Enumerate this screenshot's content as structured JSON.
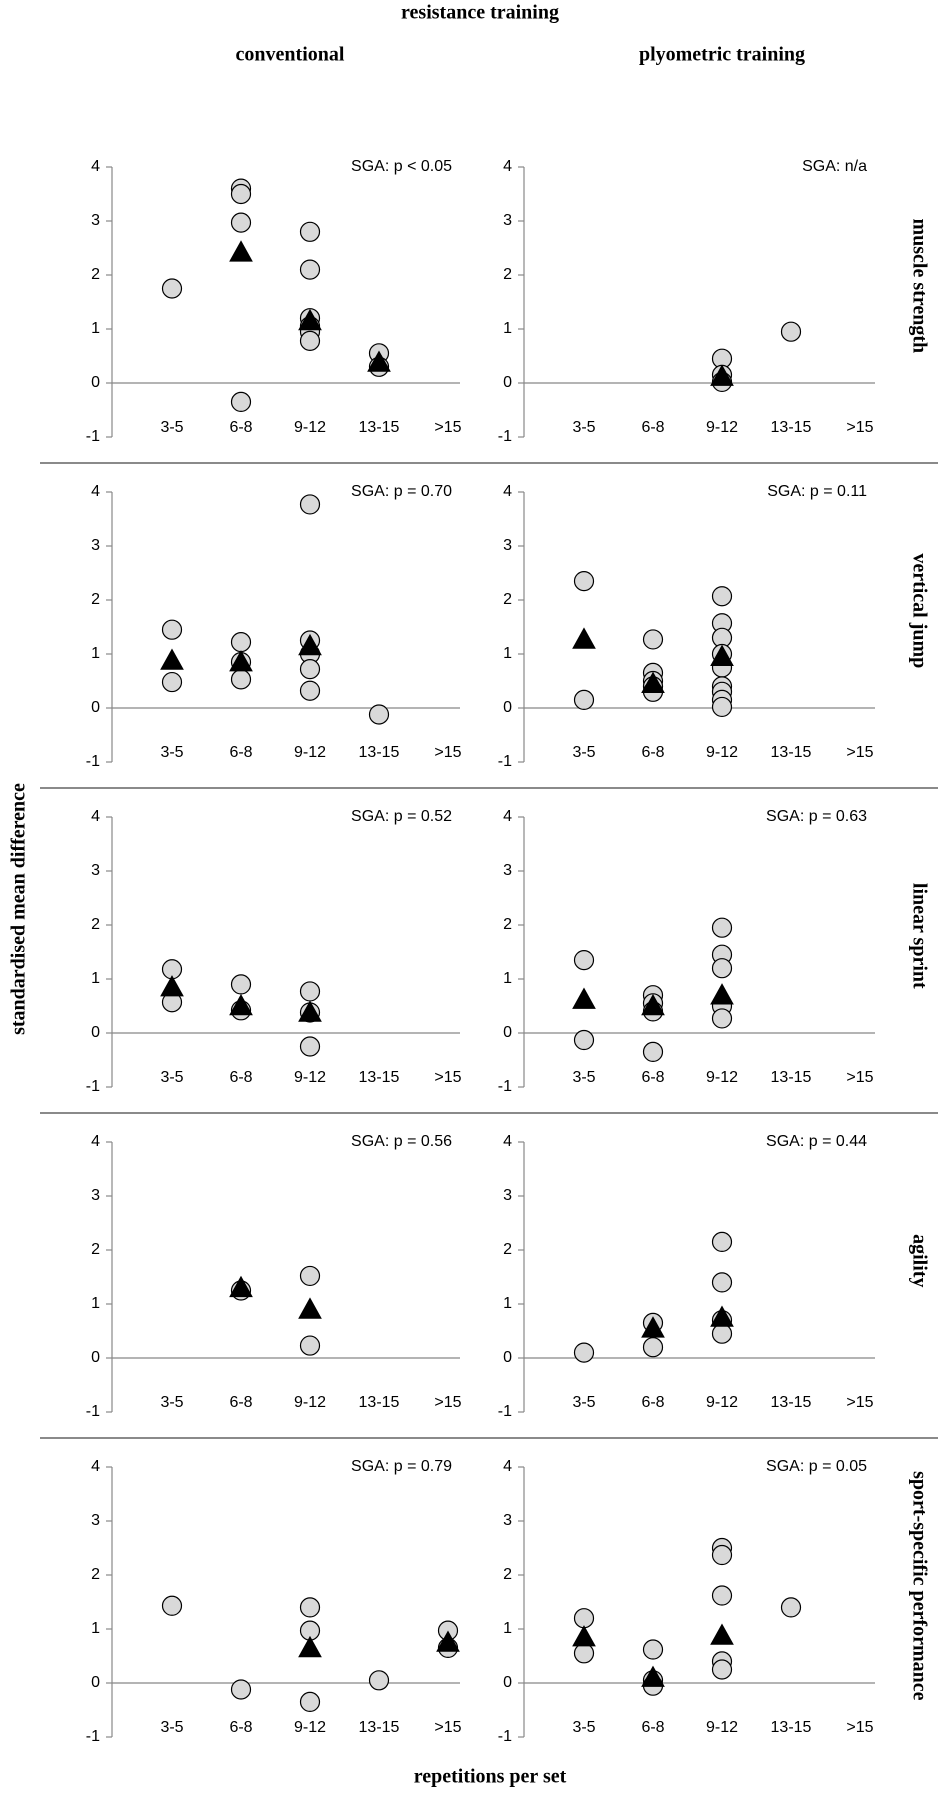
{
  "title": "resistance training",
  "column_titles": [
    "conventional",
    "plyometric training"
  ],
  "row_titles": [
    "muscle strength",
    "vertical jump",
    "linear sprint",
    "agility",
    "sport-specific performance"
  ],
  "ylabel": "standardised mean difference",
  "xlabel": "repetitions per set",
  "chart_data": [
    {
      "type": "scatter",
      "annotation": "SGA: p < 0.05",
      "categories": [
        "3-5",
        "6-8",
        "9-12",
        "13-15",
        ">15"
      ],
      "ylim": [
        -1,
        4
      ],
      "yticks": [
        -1,
        0,
        1,
        2,
        3,
        4
      ],
      "series": [
        {
          "marker": "circle",
          "color": "#d9d9d9",
          "x": [
            "3-5",
            "6-8",
            "6-8",
            "6-8",
            "6-8",
            "9-12",
            "9-12",
            "9-12",
            "9-12",
            "9-12",
            "9-12",
            "13-15",
            "13-15"
          ],
          "values": [
            1.75,
            3.6,
            3.5,
            2.97,
            -0.35,
            2.8,
            2.1,
            1.2,
            1.05,
            0.95,
            0.78,
            0.55,
            0.3
          ]
        },
        {
          "marker": "triangle",
          "color": "#000000",
          "x": [
            "6-8",
            "9-12",
            "13-15"
          ],
          "values": [
            2.42,
            1.15,
            0.38
          ]
        }
      ]
    },
    {
      "type": "scatter",
      "annotation": "SGA: n/a",
      "categories": [
        "3-5",
        "6-8",
        "9-12",
        "13-15",
        ">15"
      ],
      "ylim": [
        -1,
        4
      ],
      "yticks": [
        -1,
        0,
        1,
        2,
        3,
        4
      ],
      "series": [
        {
          "marker": "circle",
          "color": "#d9d9d9",
          "x": [
            "9-12",
            "9-12",
            "9-12",
            "13-15"
          ],
          "values": [
            0.45,
            0.15,
            0.02,
            0.95
          ]
        },
        {
          "marker": "triangle",
          "color": "#000000",
          "x": [
            "9-12"
          ],
          "values": [
            0.12
          ]
        }
      ]
    },
    {
      "type": "scatter",
      "annotation": "SGA: p = 0.70",
      "categories": [
        "3-5",
        "6-8",
        "9-12",
        "13-15",
        ">15"
      ],
      "ylim": [
        -1,
        4
      ],
      "yticks": [
        -1,
        0,
        1,
        2,
        3,
        4
      ],
      "series": [
        {
          "marker": "circle",
          "color": "#d9d9d9",
          "x": [
            "3-5",
            "3-5",
            "6-8",
            "6-8",
            "6-8",
            "9-12",
            "9-12",
            "9-12",
            "9-12",
            "9-12",
            "13-15"
          ],
          "values": [
            1.45,
            0.48,
            1.22,
            0.85,
            0.53,
            3.77,
            1.25,
            1.0,
            0.72,
            0.32,
            -0.12
          ]
        },
        {
          "marker": "triangle",
          "color": "#000000",
          "x": [
            "3-5",
            "6-8",
            "9-12"
          ],
          "values": [
            0.88,
            0.85,
            1.15
          ]
        }
      ]
    },
    {
      "type": "scatter",
      "annotation": "SGA: p = 0.11",
      "categories": [
        "3-5",
        "6-8",
        "9-12",
        "13-15",
        ">15"
      ],
      "ylim": [
        -1,
        4
      ],
      "yticks": [
        -1,
        0,
        1,
        2,
        3,
        4
      ],
      "series": [
        {
          "marker": "circle",
          "color": "#d9d9d9",
          "x": [
            "3-5",
            "3-5",
            "6-8",
            "6-8",
            "6-8",
            "6-8",
            "6-8",
            "9-12",
            "9-12",
            "9-12",
            "9-12",
            "9-12",
            "9-12",
            "9-12",
            "9-12",
            "9-12"
          ],
          "values": [
            2.35,
            0.15,
            1.27,
            0.65,
            0.5,
            0.4,
            0.3,
            2.07,
            1.57,
            1.3,
            1.0,
            0.75,
            0.4,
            0.3,
            0.15,
            0.02
          ]
        },
        {
          "marker": "triangle",
          "color": "#000000",
          "x": [
            "3-5",
            "6-8",
            "9-12"
          ],
          "values": [
            1.27,
            0.45,
            0.95
          ]
        }
      ]
    },
    {
      "type": "scatter",
      "annotation": "SGA: p = 0.52",
      "categories": [
        "3-5",
        "6-8",
        "9-12",
        "13-15",
        ">15"
      ],
      "ylim": [
        -1,
        4
      ],
      "yticks": [
        -1,
        0,
        1,
        2,
        3,
        4
      ],
      "series": [
        {
          "marker": "circle",
          "color": "#d9d9d9",
          "x": [
            "3-5",
            "3-5",
            "6-8",
            "6-8",
            "9-12",
            "9-12",
            "9-12"
          ],
          "values": [
            1.18,
            0.57,
            0.9,
            0.42,
            0.77,
            0.38,
            -0.25
          ]
        },
        {
          "marker": "triangle",
          "color": "#000000",
          "x": [
            "3-5",
            "6-8",
            "9-12"
          ],
          "values": [
            0.85,
            0.5,
            0.38
          ]
        }
      ]
    },
    {
      "type": "scatter",
      "annotation": "SGA: p = 0.63",
      "categories": [
        "3-5",
        "6-8",
        "9-12",
        "13-15",
        ">15"
      ],
      "ylim": [
        -1,
        4
      ],
      "yticks": [
        -1,
        0,
        1,
        2,
        3,
        4
      ],
      "series": [
        {
          "marker": "circle",
          "color": "#d9d9d9",
          "x": [
            "3-5",
            "3-5",
            "6-8",
            "6-8",
            "6-8",
            "6-8",
            "9-12",
            "9-12",
            "9-12",
            "9-12",
            "9-12"
          ],
          "values": [
            1.35,
            -0.13,
            0.7,
            0.55,
            0.4,
            -0.35,
            1.95,
            1.45,
            1.2,
            0.5,
            0.27
          ]
        },
        {
          "marker": "triangle",
          "color": "#000000",
          "x": [
            "3-5",
            "6-8",
            "9-12"
          ],
          "values": [
            0.62,
            0.5,
            0.7
          ]
        }
      ]
    },
    {
      "type": "scatter",
      "annotation": "SGA: p = 0.56",
      "categories": [
        "3-5",
        "6-8",
        "9-12",
        "13-15",
        ">15"
      ],
      "ylim": [
        -1,
        4
      ],
      "yticks": [
        -1,
        0,
        1,
        2,
        3,
        4
      ],
      "series": [
        {
          "marker": "circle",
          "color": "#d9d9d9",
          "x": [
            "6-8",
            "9-12",
            "9-12"
          ],
          "values": [
            1.25,
            1.52,
            0.23
          ]
        },
        {
          "marker": "triangle",
          "color": "#000000",
          "x": [
            "6-8",
            "9-12"
          ],
          "values": [
            1.3,
            0.9
          ]
        }
      ]
    },
    {
      "type": "scatter",
      "annotation": "SGA: p = 0.44",
      "categories": [
        "3-5",
        "6-8",
        "9-12",
        "13-15",
        ">15"
      ],
      "ylim": [
        -1,
        4
      ],
      "yticks": [
        -1,
        0,
        1,
        2,
        3,
        4
      ],
      "series": [
        {
          "marker": "circle",
          "color": "#d9d9d9",
          "x": [
            "3-5",
            "6-8",
            "6-8",
            "9-12",
            "9-12",
            "9-12",
            "9-12"
          ],
          "values": [
            0.1,
            0.65,
            0.2,
            2.15,
            1.4,
            0.7,
            0.45
          ]
        },
        {
          "marker": "triangle",
          "color": "#000000",
          "x": [
            "6-8",
            "9-12"
          ],
          "values": [
            0.55,
            0.75
          ]
        }
      ]
    },
    {
      "type": "scatter",
      "annotation": "SGA: p = 0.79",
      "categories": [
        "3-5",
        "6-8",
        "9-12",
        "13-15",
        ">15"
      ],
      "ylim": [
        -1,
        4
      ],
      "yticks": [
        -1,
        0,
        1,
        2,
        3,
        4
      ],
      "series": [
        {
          "marker": "circle",
          "color": "#d9d9d9",
          "x": [
            "3-5",
            "6-8",
            "9-12",
            "9-12",
            "9-12",
            "13-15",
            ">15",
            ">15"
          ],
          "values": [
            1.43,
            -0.12,
            1.4,
            0.97,
            -0.35,
            0.05,
            0.97,
            0.65
          ]
        },
        {
          "marker": "triangle",
          "color": "#000000",
          "x": [
            "9-12",
            ">15"
          ],
          "values": [
            0.65,
            0.75
          ]
        }
      ]
    },
    {
      "type": "scatter",
      "annotation": "SGA: p = 0.05",
      "categories": [
        "3-5",
        "6-8",
        "9-12",
        "13-15",
        ">15"
      ],
      "ylim": [
        -1,
        4
      ],
      "yticks": [
        -1,
        0,
        1,
        2,
        3,
        4
      ],
      "series": [
        {
          "marker": "circle",
          "color": "#d9d9d9",
          "x": [
            "3-5",
            "3-5",
            "6-8",
            "6-8",
            "6-8",
            "9-12",
            "9-12",
            "9-12",
            "9-12",
            "9-12",
            "13-15"
          ],
          "values": [
            1.2,
            0.55,
            0.62,
            0.05,
            -0.05,
            2.5,
            2.37,
            1.62,
            0.4,
            0.25,
            1.4
          ]
        },
        {
          "marker": "triangle",
          "color": "#000000",
          "x": [
            "3-5",
            "6-8",
            "9-12"
          ],
          "values": [
            0.85,
            0.1,
            0.88
          ]
        }
      ]
    }
  ]
}
